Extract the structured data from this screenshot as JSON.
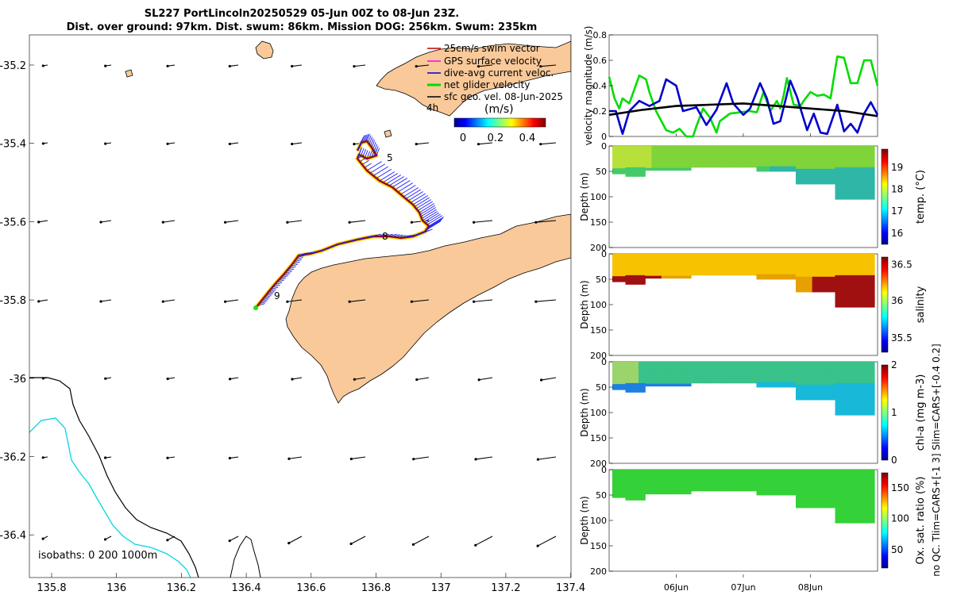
{
  "title_line1": "SL227 PortLincoln20250529 05-Jun 00Z to 08-Jun 23Z.",
  "title_line2": "Dist. over ground: 97km. Dist. swum: 86km. Mission DOG: 256km. Swum: 235km",
  "map": {
    "x_ticks": [
      "135.8",
      "136",
      "136.2",
      "136.4",
      "136.6",
      "136.8",
      "137",
      "137.2",
      "137.4"
    ],
    "y_ticks": [
      "-35.2",
      "-35.4",
      "-35.6",
      "-35.8",
      "-36",
      "-36.2",
      "-36.4"
    ],
    "legend": [
      "25cm/s swim vector",
      "GPS surface velocity",
      "dive-avg current veloc.",
      "net glider velocity",
      "sfc geo. vel. 08-Jun-2025"
    ],
    "legend_color_swim": "#c00000",
    "legend_color_gps": "#ff00ff",
    "legend_color_dive": "#0000cc",
    "legend_color_net": "#00dd00",
    "legend_color_geo": "#000000",
    "time_step_label": "4h",
    "colorbar_title": "(m/s)",
    "colorbar_ticks": [
      "0",
      "0.2",
      "0.4"
    ],
    "track_labels": [
      "5",
      "8",
      "9"
    ],
    "isobaths_label": "isobaths: 0   200  1000m",
    "land_color": "#f9c99a"
  },
  "chart_data": [
    {
      "type": "line",
      "title": "",
      "ylabel": "velocity magnitude (m/s)",
      "ylim": [
        0,
        0.8
      ],
      "y_ticks": [
        "0",
        "0.2",
        "0.4",
        "0.6",
        "0.8"
      ],
      "x_ticks": [
        "06Jun",
        "07Jun",
        "08Jun"
      ],
      "x_range_days": [
        0,
        4
      ],
      "series": [
        {
          "name": "net glider velocity",
          "color": "#00dd00",
          "x": [
            0,
            0.08,
            0.15,
            0.2,
            0.3,
            0.45,
            0.55,
            0.6,
            0.7,
            0.85,
            0.95,
            1.05,
            1.15,
            1.25,
            1.3,
            1.4,
            1.5,
            1.6,
            1.65,
            1.8,
            1.95,
            2.1,
            2.2,
            2.3,
            2.4,
            2.5,
            2.55,
            2.6,
            2.65,
            2.75,
            2.85,
            2.9,
            3.0,
            3.1,
            3.2,
            3.3,
            3.4,
            3.5,
            3.6,
            3.7,
            3.8,
            3.9,
            4.0
          ],
          "values": [
            0.47,
            0.3,
            0.22,
            0.3,
            0.26,
            0.48,
            0.45,
            0.35,
            0.2,
            0.05,
            0.03,
            0.06,
            0.0,
            0.0,
            0.08,
            0.22,
            0.15,
            0.03,
            0.12,
            0.18,
            0.19,
            0.2,
            0.19,
            0.35,
            0.2,
            0.28,
            0.22,
            0.32,
            0.46,
            0.25,
            0.24,
            0.28,
            0.35,
            0.32,
            0.33,
            0.3,
            0.63,
            0.62,
            0.42,
            0.42,
            0.6,
            0.6,
            0.4
          ]
        },
        {
          "name": "dive-avg current veloc.",
          "color": "#0000cc",
          "x": [
            0,
            0.1,
            0.2,
            0.3,
            0.45,
            0.6,
            0.75,
            0.85,
            1.0,
            1.1,
            1.3,
            1.45,
            1.6,
            1.75,
            1.85,
            2.0,
            2.1,
            2.25,
            2.35,
            2.45,
            2.55,
            2.7,
            2.8,
            2.95,
            3.05,
            3.15,
            3.25,
            3.4,
            3.5,
            3.6,
            3.7,
            3.8,
            3.9,
            4.0
          ],
          "values": [
            0.2,
            0.2,
            0.02,
            0.2,
            0.28,
            0.24,
            0.28,
            0.45,
            0.4,
            0.2,
            0.23,
            0.09,
            0.21,
            0.42,
            0.26,
            0.17,
            0.22,
            0.42,
            0.3,
            0.1,
            0.12,
            0.44,
            0.31,
            0.05,
            0.18,
            0.03,
            0.02,
            0.25,
            0.04,
            0.1,
            0.03,
            0.18,
            0.27,
            0.17
          ]
        },
        {
          "name": "sfc geo. vel.",
          "color": "#000000",
          "x": [
            0,
            0.5,
            1.0,
            1.5,
            2.0,
            2.5,
            3.0,
            3.5,
            4.0
          ],
          "values": [
            0.17,
            0.21,
            0.24,
            0.25,
            0.26,
            0.24,
            0.22,
            0.2,
            0.16
          ]
        }
      ]
    },
    {
      "type": "heatmap",
      "ylabel": "Depth (m)",
      "ylim": [
        200,
        0
      ],
      "y_ticks": [
        "0",
        "50",
        "100",
        "150",
        "200"
      ],
      "colorbar_label": "temp. (°C)",
      "colorbar_ticks": [
        "16",
        "17",
        "18",
        "19"
      ],
      "clim": [
        15.5,
        19.8
      ]
    },
    {
      "type": "heatmap",
      "ylabel": "Depth (m)",
      "ylim": [
        200,
        0
      ],
      "y_ticks": [
        "0",
        "50",
        "100",
        "150",
        "200"
      ],
      "colorbar_label": "salinity",
      "colorbar_ticks": [
        "35.5",
        "36",
        "36.5"
      ],
      "clim": [
        35.3,
        36.6
      ]
    },
    {
      "type": "heatmap",
      "ylabel": "Depth (m)",
      "ylim": [
        200,
        0
      ],
      "y_ticks": [
        "0",
        "50",
        "100",
        "150",
        "200"
      ],
      "colorbar_label": "chl-a (mg m-3)",
      "colorbar_ticks": [
        "0",
        "1",
        "2"
      ],
      "clim": [
        0,
        2
      ]
    },
    {
      "type": "heatmap",
      "ylabel": "Depth (m)",
      "ylim": [
        200,
        0
      ],
      "y_ticks": [
        "0",
        "50",
        "100",
        "150",
        "200"
      ],
      "colorbar_label": "Ox. sat. ratio (%)",
      "colorbar_ticks": [
        "50",
        "100",
        "150"
      ],
      "clim": [
        20,
        175
      ]
    }
  ],
  "side_note": "no QC. Tlim=CARS+[-1 3] Slim=CARS+[-0.4 0.2]"
}
